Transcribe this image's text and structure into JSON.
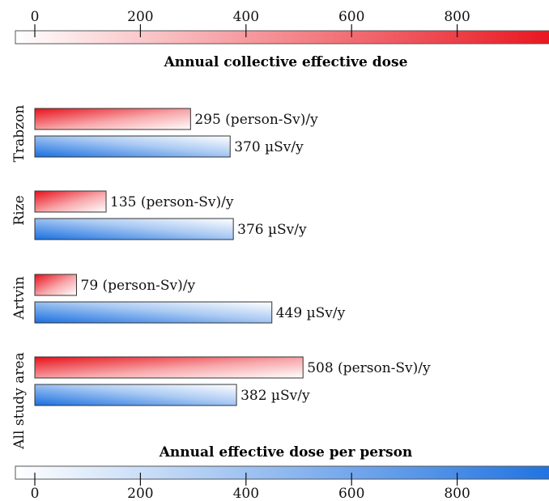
{
  "chart_data": {
    "type": "bar",
    "orientation": "horizontal",
    "categories": [
      "Trabzon",
      "Rize",
      "Artvin",
      "All study area"
    ],
    "series": [
      {
        "name": "Annual collective effective dose",
        "values": [
          295,
          135,
          79,
          508
        ],
        "unit": "(person-Sv)/y",
        "color": "#e8101a"
      },
      {
        "name": "Annual effective dose per person",
        "values": [
          370,
          376,
          449,
          382
        ],
        "unit": "µSv/y",
        "color": "#1a6fe0"
      }
    ],
    "top_axis": {
      "label": "Annual collective effective dose",
      "ticks": [
        0,
        200,
        400,
        600,
        800
      ],
      "range": [
        0,
        1000
      ]
    },
    "bottom_axis": {
      "label": "Annual effective dose per person",
      "ticks": [
        0,
        200,
        400,
        600,
        800
      ],
      "range": [
        0,
        1000
      ]
    },
    "grid": false
  }
}
